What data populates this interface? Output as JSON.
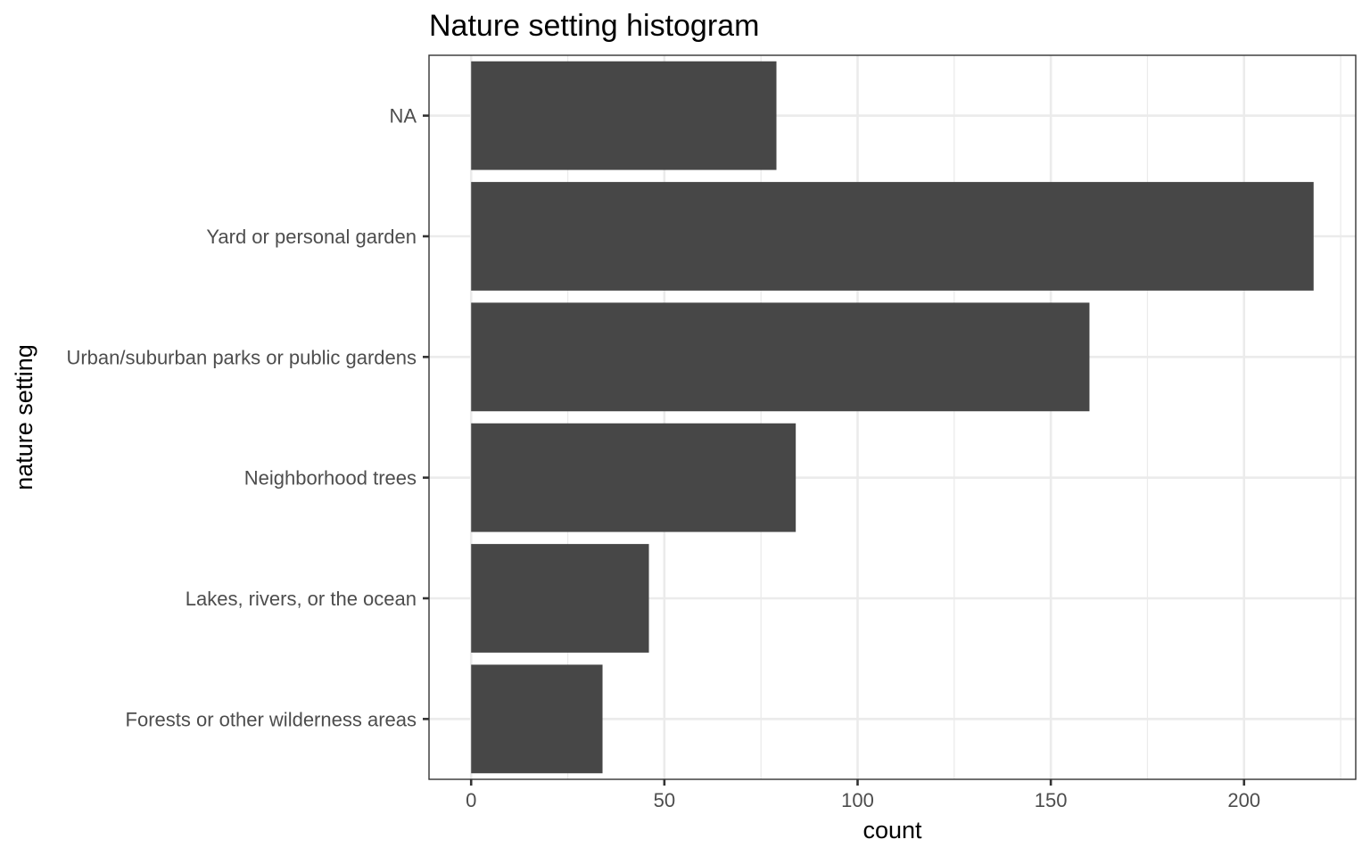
{
  "chart_data": {
    "type": "bar",
    "orientation": "horizontal",
    "title": "Nature setting histogram",
    "xlabel": "count",
    "ylabel": "nature setting",
    "categories": [
      "Forests or other wilderness areas",
      "Lakes, rivers, or the ocean",
      "Neighborhood trees",
      "Urban/suburban parks or public gardens",
      "Yard or personal garden",
      "NA"
    ],
    "values": [
      34,
      46,
      84,
      160,
      218,
      79
    ],
    "xlim": [
      -10.9,
      228.9
    ],
    "xticks": [
      0,
      50,
      100,
      150,
      200
    ],
    "grid": true,
    "legend": "none",
    "colors": {
      "bar": "#474747",
      "grid": "#ebebeb",
      "panel_border": "#333333",
      "tick_label": "#4d4d4d"
    }
  }
}
